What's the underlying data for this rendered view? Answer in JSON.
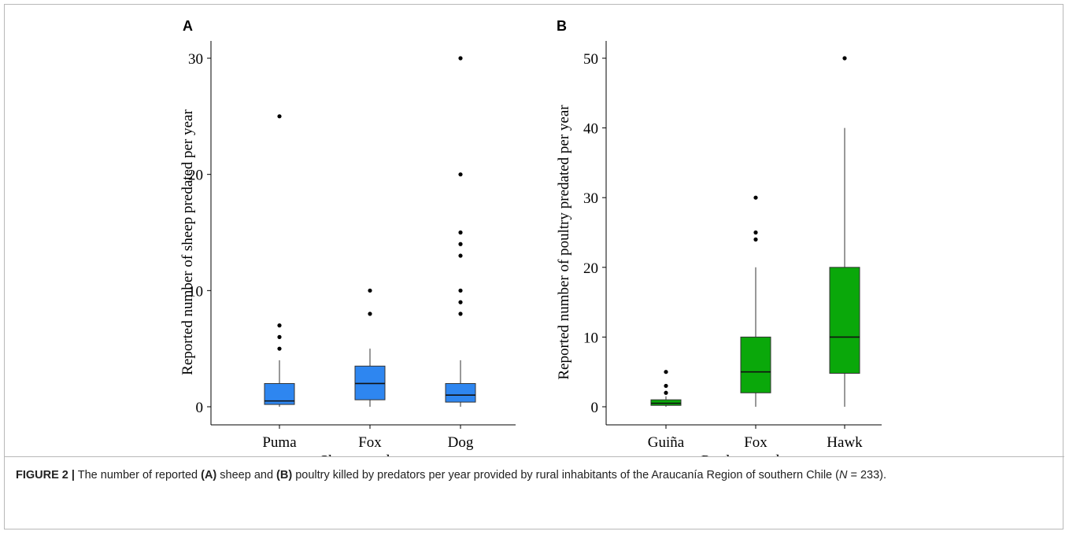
{
  "caption": {
    "label": "FIGURE 2 |",
    "text_1": " The number of reported ",
    "a_ref": "(A)",
    "text_2": " sheep and ",
    "b_ref": "(B)",
    "text_3": " poultry killed by predators per year provided by rural inhabitants of the Araucanía Region of southern Chile (",
    "n_symbol": "N",
    "text_4": " = 233)."
  },
  "chart_data": [
    {
      "type": "box",
      "panel_label": "A",
      "title": "",
      "xlabel": "Sheep predators",
      "ylabel": "Reported number of sheep predated per year",
      "ylim": [
        -1.5,
        32
      ],
      "yticks": [
        0,
        10,
        20,
        30
      ],
      "grid": false,
      "legend": "none",
      "color": "#2e86f0",
      "categories": [
        "Puma",
        "Fox",
        "Dog"
      ],
      "boxes": [
        {
          "category": "Puma",
          "whisker_low": 0,
          "q1": 0.2,
          "median": 0.5,
          "q3": 2,
          "whisker_high": 4,
          "outliers": [
            5,
            6,
            7,
            25
          ]
        },
        {
          "category": "Fox",
          "whisker_low": 0,
          "q1": 0.6,
          "median": 2,
          "q3": 3.5,
          "whisker_high": 5,
          "outliers": [
            8,
            10
          ]
        },
        {
          "category": "Dog",
          "whisker_low": 0,
          "q1": 0.4,
          "median": 1,
          "q3": 2,
          "whisker_high": 4,
          "outliers": [
            8,
            9,
            10,
            13,
            14,
            15,
            20,
            30
          ]
        }
      ]
    },
    {
      "type": "box",
      "panel_label": "B",
      "title": "",
      "xlabel": "Poultry predators",
      "ylabel": "Reported number of poultry predated per year",
      "ylim": [
        -2.5,
        53
      ],
      "yticks": [
        0,
        10,
        20,
        30,
        40,
        50
      ],
      "grid": false,
      "legend": "none",
      "color": "#0aa80a",
      "categories": [
        "Guiña",
        "Fox",
        "Hawk"
      ],
      "boxes": [
        {
          "category": "Guiña",
          "whisker_low": 0,
          "q1": 0.2,
          "median": 0.5,
          "q3": 1,
          "whisker_high": 1.5,
          "outliers": [
            2,
            3,
            5
          ]
        },
        {
          "category": "Fox",
          "whisker_low": 0,
          "q1": 2,
          "median": 5,
          "q3": 10,
          "whisker_high": 20,
          "outliers": [
            24,
            25,
            30
          ]
        },
        {
          "category": "Hawk",
          "whisker_low": 0,
          "q1": 4.8,
          "median": 10,
          "q3": 20,
          "whisker_high": 40,
          "outliers": [
            50
          ]
        }
      ]
    }
  ]
}
